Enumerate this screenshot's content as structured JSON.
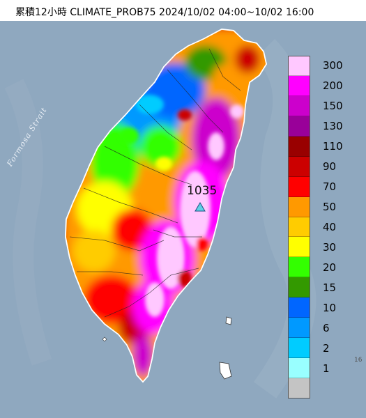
{
  "title": "累積12小時 CLIMATE_PROB75 2024/10/02 04:00~10/02 16:00",
  "map": {
    "sea_color": "#8fa8bf",
    "strait_label": "Formosa Strait",
    "station_value": "1035",
    "station_marker_color": "#5fd0e6"
  },
  "legend": {
    "items": [
      {
        "label": "300",
        "color": "#ffc8ff"
      },
      {
        "label": "200",
        "color": "#ff00ff"
      },
      {
        "label": "150",
        "color": "#cc00cc"
      },
      {
        "label": "130",
        "color": "#990099"
      },
      {
        "label": "110",
        "color": "#990000"
      },
      {
        "label": "90",
        "color": "#cc0000"
      },
      {
        "label": "70",
        "color": "#ff0000"
      },
      {
        "label": "50",
        "color": "#ff9900"
      },
      {
        "label": "40",
        "color": "#ffcc00"
      },
      {
        "label": "30",
        "color": "#ffff00"
      },
      {
        "label": "20",
        "color": "#33ff00"
      },
      {
        "label": "15",
        "color": "#339900"
      },
      {
        "label": "10",
        "color": "#0066ff"
      },
      {
        "label": "6",
        "color": "#0099ff"
      },
      {
        "label": "2",
        "color": "#00ccff"
      },
      {
        "label": "1",
        "color": "#99ffff"
      },
      {
        "label": "",
        "color": "#c4c4c4"
      }
    ]
  },
  "edge_note": "16"
}
